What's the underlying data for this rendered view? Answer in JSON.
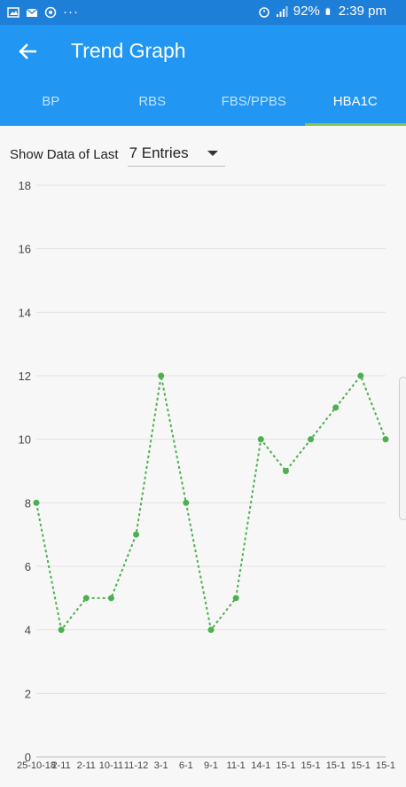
{
  "status_bar": {
    "icons_left": [
      "gallery-icon",
      "mail-icon",
      "whatsapp-icon",
      "more-icon"
    ],
    "icons_right": [
      "alarm-icon",
      "signal-icon"
    ],
    "battery": "92%",
    "time": "2:39 pm",
    "more": "···"
  },
  "app_bar": {
    "back_icon": "arrow-back-icon",
    "title": "Trend Graph"
  },
  "tabs": [
    {
      "label": "BP",
      "active": false
    },
    {
      "label": "RBS",
      "active": false
    },
    {
      "label": "FBS/PPBS",
      "active": false
    },
    {
      "label": "HBA1C",
      "active": true
    }
  ],
  "filter": {
    "label": "Show Data of Last",
    "selected": "7 Entries"
  },
  "colors": {
    "status_bar": "#1e7fd8",
    "app_bar": "#2196f3",
    "tab_indicator": "#8bc34a",
    "line": "#4caf50"
  },
  "chart_data": {
    "type": "line",
    "x": [
      "25-10-18",
      "2-11",
      "2-11",
      "10-11",
      "11-12",
      "3-1",
      "6-1",
      "9-1",
      "11-1",
      "14-1",
      "15-1",
      "15-1",
      "15-1",
      "15-1",
      "15-1"
    ],
    "values": [
      8,
      4,
      5,
      5,
      7,
      12,
      8,
      4,
      5,
      10,
      9,
      10,
      11,
      12,
      10
    ],
    "ylim": [
      0,
      18
    ],
    "yticks": [
      0,
      2,
      4,
      6,
      8,
      10,
      12,
      14,
      16,
      18
    ],
    "grid": true,
    "line_style": "dotted",
    "markers": true
  }
}
